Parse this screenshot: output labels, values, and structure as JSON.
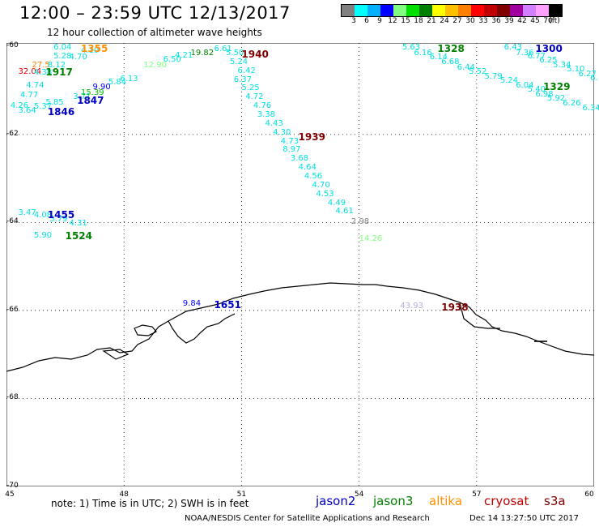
{
  "header": {
    "title": "12:00 – 23:59 UTC 12/13/2017",
    "subtitle": "12 hour collection of altimeter wave heights"
  },
  "colorbar": {
    "colors": [
      "#808080",
      "#00ffff",
      "#00b0ff",
      "#0000ff",
      "#80ff80",
      "#00e000",
      "#008000",
      "#ffff00",
      "#ffc000",
      "#ff8000",
      "#ff0000",
      "#c00000",
      "#800000",
      "#a000a0",
      "#d080ff",
      "#ffa0ff",
      "#000000"
    ],
    "labels": [
      "3",
      "6",
      "9",
      "12",
      "15",
      "18",
      "21",
      "24",
      "27",
      "30",
      "33",
      "36",
      "39",
      "42",
      "45",
      "70",
      "(ft)"
    ]
  },
  "map": {
    "lat_ticks": [
      "-60",
      "-62",
      "-64",
      "-66",
      "-68",
      "-70"
    ],
    "lon_ticks": [
      "45",
      "48",
      "51",
      "54",
      "57",
      "60"
    ]
  },
  "swh_observations": [
    {
      "t": "6.04",
      "c": "#00e0e0",
      "lon": 46.2,
      "lat": -59.92
    },
    {
      "t": "4.10",
      "c": "#00e0e0",
      "lon": 46.9,
      "lat": -60.0
    },
    {
      "t": "5.28",
      "c": "#00e0e0",
      "lon": 46.2,
      "lat": -60.12
    },
    {
      "t": "4.70",
      "c": "#00e0e0",
      "lon": 46.6,
      "lat": -60.15
    },
    {
      "t": "27.5",
      "c": "#ff8000",
      "lon": 45.65,
      "lat": -60.32
    },
    {
      "t": "32.04",
      "c": "#e00000",
      "lon": 45.3,
      "lat": -60.48
    },
    {
      "t": "8.12",
      "c": "#00e0e0",
      "lon": 46.05,
      "lat": -60.32
    },
    {
      "t": "4.38",
      "c": "#00e0e0",
      "lon": 45.7,
      "lat": -60.5
    },
    {
      "t": "4.74",
      "c": "#00e0e0",
      "lon": 45.5,
      "lat": -60.78
    },
    {
      "t": "4.77",
      "c": "#00e0e0",
      "lon": 45.35,
      "lat": -61.0
    },
    {
      "t": "4.26",
      "c": "#00e0e0",
      "lon": 45.1,
      "lat": -61.25
    },
    {
      "t": "5.37",
      "c": "#00e0e0",
      "lon": 45.7,
      "lat": -61.27
    },
    {
      "t": "5.85",
      "c": "#00e0e0",
      "lon": 46.0,
      "lat": -61.17
    },
    {
      "t": "3.64",
      "c": "#00e0e0",
      "lon": 45.3,
      "lat": -61.35
    },
    {
      "t": "3.71",
      "c": "#00e0e0",
      "lon": 46.7,
      "lat": -61.05
    },
    {
      "t": "15.39",
      "c": "#00c000",
      "lon": 46.9,
      "lat": -60.95
    },
    {
      "t": "9.90",
      "c": "#0000ff",
      "lon": 47.2,
      "lat": -60.82
    },
    {
      "t": "5.84",
      "c": "#00e0e0",
      "lon": 47.6,
      "lat": -60.72
    },
    {
      "t": "6.13",
      "c": "#00e0e0",
      "lon": 47.9,
      "lat": -60.64
    },
    {
      "t": "12.90",
      "c": "#80ff80",
      "lon": 48.5,
      "lat": -60.32
    },
    {
      "t": "6.50",
      "c": "#00e0e0",
      "lon": 49.0,
      "lat": -60.2
    },
    {
      "t": "4.21",
      "c": "#00e0e0",
      "lon": 49.3,
      "lat": -60.1
    },
    {
      "t": "19.82",
      "c": "#008000",
      "lon": 49.7,
      "lat": -60.05
    },
    {
      "t": "6.61",
      "c": "#00e0e0",
      "lon": 50.3,
      "lat": -59.95
    },
    {
      "t": "5.50",
      "c": "#00e0e0",
      "lon": 50.6,
      "lat": -60.05
    },
    {
      "t": "5.24",
      "c": "#00e0e0",
      "lon": 50.7,
      "lat": -60.25
    },
    {
      "t": "6.42",
      "c": "#00e0e0",
      "lon": 50.9,
      "lat": -60.45
    },
    {
      "t": "6.37",
      "c": "#00e0e0",
      "lon": 50.8,
      "lat": -60.65
    },
    {
      "t": "5.25",
      "c": "#00e0e0",
      "lon": 51.0,
      "lat": -60.85
    },
    {
      "t": "4.72",
      "c": "#00e0e0",
      "lon": 51.1,
      "lat": -61.05
    },
    {
      "t": "4.76",
      "c": "#00e0e0",
      "lon": 51.3,
      "lat": -61.25
    },
    {
      "t": "3.38",
      "c": "#00e0e0",
      "lon": 51.4,
      "lat": -61.45
    },
    {
      "t": "4.43",
      "c": "#00e0e0",
      "lon": 51.6,
      "lat": -61.65
    },
    {
      "t": "4.30",
      "c": "#00e0e0",
      "lon": 51.8,
      "lat": -61.85
    },
    {
      "t": "4.73",
      "c": "#00e0e0",
      "lon": 52.0,
      "lat": -62.05
    },
    {
      "t": "8.97",
      "c": "#00e0e0",
      "lon": 52.05,
      "lat": -62.25
    },
    {
      "t": "3.68",
      "c": "#00e0e0",
      "lon": 52.25,
      "lat": -62.45
    },
    {
      "t": "4.64",
      "c": "#00e0e0",
      "lon": 52.45,
      "lat": -62.65
    },
    {
      "t": "4.56",
      "c": "#00e0e0",
      "lon": 52.6,
      "lat": -62.85
    },
    {
      "t": "4.70",
      "c": "#00e0e0",
      "lon": 52.8,
      "lat": -63.05
    },
    {
      "t": "4.53",
      "c": "#00e0e0",
      "lon": 52.9,
      "lat": -63.25
    },
    {
      "t": "4.49",
      "c": "#00e0e0",
      "lon": 53.2,
      "lat": -63.45
    },
    {
      "t": "4.61",
      "c": "#00e0e0",
      "lon": 53.4,
      "lat": -63.65
    },
    {
      "t": "2.98",
      "c": "#808080",
      "lon": 53.8,
      "lat": -63.88
    },
    {
      "t": "14.26",
      "c": "#80ff80",
      "lon": 54.0,
      "lat": -64.27
    },
    {
      "t": "3.47",
      "c": "#00e0e0",
      "lon": 45.3,
      "lat": -63.68
    },
    {
      "t": "4.08",
      "c": "#00e0e0",
      "lon": 45.7,
      "lat": -63.74
    },
    {
      "t": "5.79",
      "c": "#00e0e0",
      "lon": 46.1,
      "lat": -63.82
    },
    {
      "t": "4.31",
      "c": "#00e0e0",
      "lon": 46.6,
      "lat": -63.92
    },
    {
      "t": "5.90",
      "c": "#00e0e0",
      "lon": 45.7,
      "lat": -64.2
    },
    {
      "t": "9.84",
      "c": "#0000ff",
      "lon": 49.5,
      "lat": -65.75
    },
    {
      "t": "43.93",
      "c": "#b0b0e0",
      "lon": 55.05,
      "lat": -65.8
    },
    {
      "t": "5.63",
      "c": "#00e0e0",
      "lon": 55.1,
      "lat": -59.92
    },
    {
      "t": "6.16",
      "c": "#00e0e0",
      "lon": 55.4,
      "lat": -60.05
    },
    {
      "t": "6.14",
      "c": "#00e0e0",
      "lon": 55.8,
      "lat": -60.15
    },
    {
      "t": "6.68",
      "c": "#00e0e0",
      "lon": 56.1,
      "lat": -60.25
    },
    {
      "t": "6.44",
      "c": "#00e0e0",
      "lon": 56.5,
      "lat": -60.38
    },
    {
      "t": "5.52",
      "c": "#00e0e0",
      "lon": 56.8,
      "lat": -60.48
    },
    {
      "t": "5.79",
      "c": "#00e0e0",
      "lon": 57.2,
      "lat": -60.58
    },
    {
      "t": "5.24",
      "c": "#00e0e0",
      "lon": 57.6,
      "lat": -60.68
    },
    {
      "t": "6.04",
      "c": "#00e0e0",
      "lon": 58.0,
      "lat": -60.78
    },
    {
      "t": "5.40",
      "c": "#00e0e0",
      "lon": 58.3,
      "lat": -60.88
    },
    {
      "t": "6.98",
      "c": "#00e0e0",
      "lon": 58.5,
      "lat": -60.98
    },
    {
      "t": "5.92",
      "c": "#00e0e0",
      "lon": 58.8,
      "lat": -61.08
    },
    {
      "t": "6.26",
      "c": "#00e0e0",
      "lon": 59.2,
      "lat": -61.2
    },
    {
      "t": "6.34",
      "c": "#00e0e0",
      "lon": 59.7,
      "lat": -61.3
    },
    {
      "t": "6.43",
      "c": "#00e0e0",
      "lon": 57.7,
      "lat": -59.92
    },
    {
      "t": "7.36",
      "c": "#00e0e0",
      "lon": 58.0,
      "lat": -60.05
    },
    {
      "t": "6.77",
      "c": "#00e0e0",
      "lon": 58.3,
      "lat": -60.12
    },
    {
      "t": "6.25",
      "c": "#00e0e0",
      "lon": 58.6,
      "lat": -60.22
    },
    {
      "t": "5.34",
      "c": "#00e0e0",
      "lon": 58.95,
      "lat": -60.32
    },
    {
      "t": "5.10",
      "c": "#00e0e0",
      "lon": 59.3,
      "lat": -60.42
    },
    {
      "t": "6.27",
      "c": "#00e0e0",
      "lon": 59.6,
      "lat": -60.52
    },
    {
      "t": "6.",
      "c": "#00e0e0",
      "lon": 59.9,
      "lat": -60.62
    }
  ],
  "pass_times": [
    {
      "t": "1355",
      "c": "#ff9000",
      "lon": 46.9,
      "lat": -59.92
    },
    {
      "t": "1917",
      "c": "#008000",
      "lon": 46.0,
      "lat": -60.45
    },
    {
      "t": "1847",
      "c": "#0000c0",
      "lon": 46.8,
      "lat": -61.1
    },
    {
      "t": "1846",
      "c": "#0000c0",
      "lon": 46.05,
      "lat": -61.35
    },
    {
      "t": "1940",
      "c": "#800000",
      "lon": 51.0,
      "lat": -60.05
    },
    {
      "t": "1939",
      "c": "#800000",
      "lon": 52.45,
      "lat": -61.92
    },
    {
      "t": "1455",
      "c": "#0000c0",
      "lon": 46.05,
      "lat": -63.7
    },
    {
      "t": "1524",
      "c": "#008000",
      "lon": 46.5,
      "lat": -64.18
    },
    {
      "t": "1651",
      "c": "#0000c0",
      "lon": 50.3,
      "lat": -65.75
    },
    {
      "t": "1938",
      "c": "#800000",
      "lon": 56.1,
      "lat": -65.8
    },
    {
      "t": "1328",
      "c": "#008000",
      "lon": 56.0,
      "lat": -59.92
    },
    {
      "t": "1300",
      "c": "#0000c0",
      "lon": 58.5,
      "lat": -59.92
    },
    {
      "t": "1329",
      "c": "#008000",
      "lon": 58.7,
      "lat": -60.78
    }
  ],
  "footer": {
    "note": "note: 1) Time is in UTC; 2) SWH is in feet",
    "legend": [
      {
        "label": "jason2",
        "color": "#0000c0"
      },
      {
        "label": "jason3",
        "color": "#008000"
      },
      {
        "label": "altika",
        "color": "#ff9000"
      },
      {
        "label": "cryosat",
        "color": "#c00000"
      },
      {
        "label": "s3a",
        "color": "#800000"
      }
    ],
    "credit": "NOAA/NESDIS Center for Satellite Applications and Research",
    "timestamp": "Dec 14 13:27:50 UTC 2017"
  }
}
